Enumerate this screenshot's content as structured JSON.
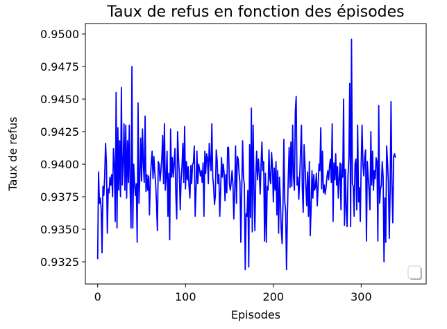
{
  "chart_data": {
    "type": "line",
    "title": "Taux de refus en fonction des épisodes",
    "xlabel": "Episodes",
    "ylabel": "Taux de refus",
    "xlim": [
      -14,
      374
    ],
    "ylim": [
      0.9308,
      0.9508
    ],
    "xticks": [
      0,
      100,
      200,
      300
    ],
    "yticks": [
      0.9325,
      0.935,
      0.9375,
      0.94,
      0.9425,
      0.945,
      0.9475,
      0.95
    ],
    "ytick_labels": [
      "0.9325",
      "0.9350",
      "0.9375",
      "0.9400",
      "0.9425",
      "0.9450",
      "0.9475",
      "0.9500"
    ],
    "grid": false,
    "legend": "bottom-right",
    "series": [
      {
        "color": "#0000ff",
        "x_start": 0,
        "x_step": 1,
        "values": [
          0.9327,
          0.9394,
          0.937,
          0.9374,
          0.9366,
          0.9332,
          0.9383,
          0.9376,
          0.9391,
          0.9416,
          0.94,
          0.9347,
          0.9381,
          0.9378,
          0.939,
          0.9384,
          0.9392,
          0.9375,
          0.9412,
          0.94,
          0.9356,
          0.9455,
          0.9351,
          0.9428,
          0.938,
          0.9418,
          0.9375,
          0.9459,
          0.9384,
          0.94,
          0.9431,
          0.938,
          0.943,
          0.9374,
          0.9418,
          0.9386,
          0.943,
          0.9381,
          0.9351,
          0.9475,
          0.9351,
          0.94,
          0.9385,
          0.9376,
          0.9385,
          0.934,
          0.9447,
          0.937,
          0.939,
          0.942,
          0.9387,
          0.9427,
          0.94,
          0.9386,
          0.9437,
          0.9379,
          0.9392,
          0.938,
          0.9391,
          0.9361,
          0.9389,
          0.9401,
          0.941,
          0.9389,
          0.9406,
          0.9394,
          0.9385,
          0.937,
          0.9349,
          0.9402,
          0.94,
          0.9387,
          0.9395,
          0.9404,
          0.9422,
          0.9385,
          0.9431,
          0.938,
          0.939,
          0.941,
          0.936,
          0.9393,
          0.9342,
          0.9427,
          0.939,
          0.9405,
          0.939,
          0.9401,
          0.9412,
          0.9376,
          0.9358,
          0.9425,
          0.9405,
          0.9393,
          0.9365,
          0.9388,
          0.9398,
          0.9416,
          0.9386,
          0.9429,
          0.9381,
          0.9402,
          0.9388,
          0.9398,
          0.9383,
          0.9374,
          0.9399,
          0.9385,
          0.94,
          0.9401,
          0.9414,
          0.936,
          0.938,
          0.941,
          0.9385,
          0.94,
          0.9396,
          0.9391,
          0.9395,
          0.9386,
          0.9401,
          0.936,
          0.941,
          0.9393,
          0.9408,
          0.9405,
          0.9385,
          0.9416,
          0.9403,
          0.9395,
          0.9431,
          0.939,
          0.9383,
          0.9369,
          0.9376,
          0.9411,
          0.9403,
          0.9385,
          0.9392,
          0.936,
          0.938,
          0.9405,
          0.939,
          0.94,
          0.9393,
          0.9372,
          0.9392,
          0.9378,
          0.9413,
          0.9413,
          0.9385,
          0.938,
          0.9386,
          0.9395,
          0.9385,
          0.9358,
          0.9379,
          0.9414,
          0.937,
          0.9406,
          0.9404,
          0.9393,
          0.9386,
          0.934,
          0.9379,
          0.9418,
          0.939,
          0.9384,
          0.9319,
          0.9362,
          0.936,
          0.938,
          0.9321,
          0.9415,
          0.9359,
          0.9443,
          0.9348,
          0.943,
          0.938,
          0.9349,
          0.9391,
          0.941,
          0.9388,
          0.9404,
          0.9393,
          0.9377,
          0.9399,
          0.9417,
          0.9395,
          0.9402,
          0.9341,
          0.9393,
          0.934,
          0.9383,
          0.938,
          0.9411,
          0.9389,
          0.9385,
          0.9409,
          0.9398,
          0.9371,
          0.9397,
          0.938,
          0.9402,
          0.9361,
          0.9395,
          0.9347,
          0.939,
          0.9373,
          0.935,
          0.9339,
          0.937,
          0.9419,
          0.9371,
          0.9364,
          0.9319,
          0.9361,
          0.939,
          0.9413,
          0.9382,
          0.9417,
          0.9383,
          0.943,
          0.939,
          0.938,
          0.944,
          0.9452,
          0.9384,
          0.939,
          0.9373,
          0.939,
          0.941,
          0.943,
          0.9381,
          0.9363,
          0.9415,
          0.94,
          0.9383,
          0.9368,
          0.9394,
          0.936,
          0.9402,
          0.9345,
          0.9366,
          0.9395,
          0.9374,
          0.9392,
          0.938,
          0.9383,
          0.9393,
          0.9368,
          0.9384,
          0.94,
          0.9395,
          0.9428,
          0.9381,
          0.941,
          0.9378,
          0.9384,
          0.9377,
          0.9382,
          0.939,
          0.9395,
          0.9388,
          0.9399,
          0.9404,
          0.9386,
          0.9431,
          0.9356,
          0.9401,
          0.9388,
          0.9408,
          0.9384,
          0.9398,
          0.9374,
          0.939,
          0.9401,
          0.9365,
          0.94,
          0.939,
          0.945,
          0.9353,
          0.9396,
          0.9365,
          0.9352,
          0.9391,
          0.9405,
          0.9462,
          0.9352,
          0.9496,
          0.9385,
          0.9383,
          0.936,
          0.94,
          0.9404,
          0.9365,
          0.943,
          0.9371,
          0.9382,
          0.9356,
          0.94,
          0.943,
          0.94,
          0.9391,
          0.9405,
          0.9411,
          0.9341,
          0.9402,
          0.939,
          0.938,
          0.9365,
          0.9425,
          0.9384,
          0.941,
          0.938,
          0.9395,
          0.9389,
          0.9405,
          0.9402,
          0.9341,
          0.9445,
          0.937,
          0.9381,
          0.9384,
          0.9402,
          0.939,
          0.9325,
          0.9374,
          0.934,
          0.9414,
          0.9402,
          0.9386,
          0.9343,
          0.938,
          0.9448,
          0.9384,
          0.9355,
          0.9406,
          0.9408,
          0.9405
        ]
      }
    ]
  }
}
